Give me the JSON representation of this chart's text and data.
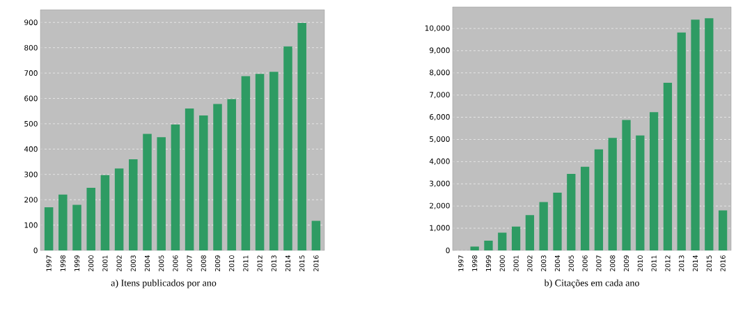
{
  "chart_data": [
    {
      "type": "bar",
      "categories": [
        "1997",
        "1998",
        "1999",
        "2000",
        "2001",
        "2002",
        "2003",
        "2004",
        "2005",
        "2006",
        "2007",
        "2008",
        "2009",
        "2010",
        "2011",
        "2012",
        "2013",
        "2014",
        "2015",
        "2016"
      ],
      "values": [
        170,
        220,
        180,
        247,
        297,
        323,
        360,
        460,
        447,
        497,
        560,
        533,
        578,
        597,
        688,
        697,
        705,
        805,
        898,
        117
      ],
      "color": "#2e9b63",
      "ylim": [
        0,
        950
      ],
      "yticks": [
        0,
        100,
        200,
        300,
        400,
        500,
        600,
        700,
        800,
        900
      ],
      "grid": "y",
      "annotations": [
        "a) Itens publicados por ano"
      ]
    },
    {
      "type": "bar",
      "categories": [
        "1997",
        "1998",
        "1999",
        "2000",
        "2001",
        "2002",
        "2003",
        "2004",
        "2005",
        "2006",
        "2007",
        "2008",
        "2009",
        "2010",
        "2011",
        "2012",
        "2013",
        "2014",
        "2015",
        "2016"
      ],
      "values": [
        0,
        170,
        440,
        800,
        1070,
        1590,
        2180,
        2600,
        3450,
        3770,
        4550,
        5070,
        5880,
        5180,
        6230,
        7550,
        9820,
        10400,
        10460,
        1800
      ],
      "color": "#2e9b63",
      "ylim": [
        0,
        10970
      ],
      "yticks": [
        0,
        {
          "value": 1000,
          "label": "1,000"
        },
        {
          "value": 2000,
          "label": "2,000"
        },
        {
          "value": 3000,
          "label": "3,000"
        },
        {
          "value": 4000,
          "label": "4,000"
        },
        {
          "value": 5000,
          "label": "5,000"
        },
        {
          "value": 6000,
          "label": "6,000"
        },
        {
          "value": 7000,
          "label": "7,000"
        },
        {
          "value": 8000,
          "label": "8,000"
        },
        {
          "value": 9000,
          "label": "9,000"
        },
        {
          "value": 10000,
          "label": "10,000"
        }
      ],
      "grid": "y",
      "annotations": [
        "b) Citações em cada ano"
      ]
    }
  ]
}
